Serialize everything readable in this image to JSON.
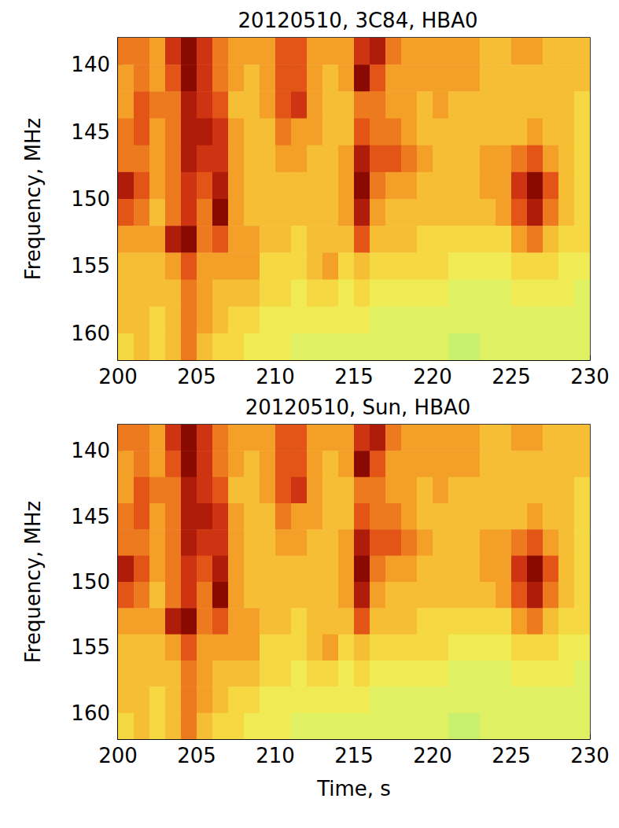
{
  "chart_data": [
    {
      "type": "heatmap",
      "title": "20120510, 3C84, HBA0",
      "ylabel": "Frequency, MHz",
      "xlim": [
        200,
        230
      ],
      "xticks": [
        200,
        205,
        210,
        215,
        220,
        225,
        230
      ],
      "ylim": [
        162,
        138
      ],
      "yticks": [
        140,
        145,
        150,
        155,
        160
      ],
      "grid": false,
      "time_bins": [
        200,
        201,
        202,
        203,
        204,
        205,
        206,
        207,
        208,
        209,
        210,
        211,
        212,
        213,
        214,
        215,
        216,
        217,
        218,
        219,
        220,
        221,
        222,
        223,
        224,
        225,
        226,
        227,
        228,
        229,
        230
      ],
      "frequency_bins": [
        138,
        140,
        142,
        144,
        146,
        148,
        150,
        152,
        154,
        156,
        158,
        160,
        162
      ],
      "zlim": [
        0,
        10
      ],
      "intensity": [
        [
          6,
          6,
          5,
          8,
          10,
          8,
          6,
          5,
          5,
          5,
          7,
          7,
          5,
          5,
          5,
          8,
          9,
          6,
          5,
          5,
          5,
          5,
          5,
          4,
          4,
          5,
          5,
          4,
          4,
          4
        ],
        [
          5,
          6,
          5,
          7,
          10,
          8,
          6,
          5,
          4,
          5,
          7,
          7,
          5,
          4,
          5,
          10,
          7,
          5,
          5,
          5,
          5,
          5,
          5,
          4,
          4,
          4,
          4,
          4,
          4,
          4
        ],
        [
          5,
          7,
          6,
          6,
          9,
          8,
          7,
          4,
          4,
          5,
          7,
          8,
          5,
          4,
          4,
          6,
          6,
          5,
          5,
          4,
          5,
          4,
          4,
          4,
          4,
          4,
          4,
          4,
          4,
          3
        ],
        [
          6,
          7,
          5,
          6,
          9,
          9,
          8,
          5,
          4,
          4,
          6,
          5,
          5,
          4,
          4,
          7,
          6,
          6,
          5,
          4,
          4,
          4,
          4,
          4,
          4,
          4,
          5,
          4,
          4,
          3
        ],
        [
          6,
          6,
          5,
          6,
          9,
          8,
          8,
          5,
          4,
          4,
          5,
          5,
          4,
          4,
          5,
          9,
          7,
          7,
          6,
          5,
          4,
          4,
          4,
          5,
          5,
          6,
          7,
          5,
          4,
          3
        ],
        [
          9,
          7,
          5,
          6,
          8,
          7,
          9,
          5,
          4,
          4,
          4,
          4,
          4,
          4,
          5,
          10,
          6,
          5,
          5,
          4,
          4,
          4,
          4,
          5,
          5,
          8,
          10,
          7,
          4,
          3
        ],
        [
          7,
          6,
          4,
          6,
          8,
          6,
          10,
          5,
          4,
          4,
          4,
          4,
          4,
          4,
          5,
          9,
          5,
          4,
          4,
          4,
          4,
          4,
          4,
          4,
          5,
          7,
          9,
          6,
          4,
          3
        ],
        [
          5,
          5,
          5,
          9,
          10,
          6,
          7,
          5,
          5,
          4,
          4,
          3,
          4,
          4,
          4,
          7,
          4,
          4,
          4,
          3,
          3,
          3,
          3,
          3,
          3,
          5,
          6,
          4,
          3,
          3
        ],
        [
          4,
          4,
          4,
          5,
          7,
          5,
          5,
          5,
          5,
          3,
          3,
          3,
          4,
          5,
          3,
          4,
          3,
          3,
          3,
          3,
          3,
          2,
          2,
          2,
          2,
          3,
          3,
          3,
          2,
          2
        ],
        [
          4,
          4,
          4,
          4,
          6,
          5,
          4,
          4,
          4,
          3,
          3,
          2,
          3,
          3,
          2,
          3,
          2,
          2,
          2,
          2,
          2,
          1,
          1,
          1,
          1,
          2,
          2,
          2,
          2,
          1
        ],
        [
          4,
          4,
          3,
          4,
          6,
          5,
          4,
          3,
          3,
          2,
          2,
          2,
          2,
          2,
          2,
          2,
          1,
          1,
          1,
          1,
          1,
          1,
          1,
          1,
          1,
          1,
          1,
          1,
          1,
          1
        ],
        [
          3,
          4,
          3,
          4,
          6,
          4,
          3,
          3,
          2,
          2,
          2,
          1,
          1,
          1,
          1,
          1,
          1,
          1,
          1,
          1,
          1,
          0,
          0,
          1,
          1,
          1,
          1,
          1,
          1,
          1
        ]
      ]
    },
    {
      "type": "heatmap",
      "title": "20120510, Sun, HBA0",
      "xlabel": "Time, s",
      "ylabel": "Frequency, MHz",
      "xlim": [
        200,
        230
      ],
      "xticks": [
        200,
        205,
        210,
        215,
        220,
        225,
        230
      ],
      "ylim": [
        162,
        138
      ],
      "yticks": [
        140,
        145,
        150,
        155,
        160
      ],
      "grid": false,
      "time_bins": [
        200,
        201,
        202,
        203,
        204,
        205,
        206,
        207,
        208,
        209,
        210,
        211,
        212,
        213,
        214,
        215,
        216,
        217,
        218,
        219,
        220,
        221,
        222,
        223,
        224,
        225,
        226,
        227,
        228,
        229,
        230
      ],
      "frequency_bins": [
        138,
        140,
        142,
        144,
        146,
        148,
        150,
        152,
        154,
        156,
        158,
        160,
        162
      ],
      "zlim": [
        0,
        10
      ],
      "intensity": [
        [
          6,
          6,
          5,
          8,
          10,
          8,
          6,
          5,
          5,
          5,
          7,
          7,
          5,
          5,
          5,
          8,
          9,
          6,
          5,
          5,
          5,
          5,
          5,
          4,
          4,
          5,
          5,
          4,
          4,
          4
        ],
        [
          5,
          6,
          5,
          7,
          10,
          8,
          6,
          5,
          4,
          5,
          7,
          7,
          5,
          4,
          5,
          10,
          7,
          5,
          5,
          5,
          5,
          5,
          5,
          4,
          4,
          4,
          4,
          4,
          4,
          4
        ],
        [
          5,
          7,
          6,
          6,
          9,
          8,
          7,
          4,
          4,
          5,
          7,
          8,
          5,
          4,
          4,
          6,
          6,
          5,
          5,
          4,
          5,
          4,
          4,
          4,
          4,
          4,
          4,
          4,
          4,
          3
        ],
        [
          6,
          7,
          5,
          6,
          9,
          9,
          8,
          5,
          4,
          4,
          6,
          5,
          5,
          4,
          4,
          7,
          6,
          6,
          5,
          4,
          4,
          4,
          4,
          4,
          4,
          4,
          5,
          4,
          4,
          3
        ],
        [
          6,
          6,
          5,
          6,
          9,
          8,
          8,
          5,
          4,
          4,
          5,
          5,
          4,
          4,
          5,
          9,
          7,
          7,
          6,
          5,
          4,
          4,
          4,
          5,
          5,
          6,
          7,
          5,
          4,
          3
        ],
        [
          9,
          7,
          5,
          6,
          8,
          7,
          9,
          5,
          4,
          4,
          4,
          4,
          4,
          4,
          5,
          10,
          6,
          5,
          5,
          4,
          4,
          4,
          4,
          5,
          5,
          8,
          10,
          7,
          4,
          3
        ],
        [
          7,
          6,
          4,
          6,
          8,
          6,
          10,
          5,
          4,
          4,
          4,
          4,
          4,
          4,
          5,
          9,
          5,
          4,
          4,
          4,
          4,
          4,
          4,
          4,
          5,
          7,
          9,
          6,
          4,
          3
        ],
        [
          5,
          5,
          5,
          9,
          10,
          6,
          7,
          5,
          5,
          4,
          4,
          3,
          4,
          4,
          4,
          7,
          4,
          4,
          4,
          3,
          3,
          3,
          3,
          3,
          3,
          5,
          6,
          4,
          3,
          3
        ],
        [
          4,
          4,
          4,
          5,
          7,
          5,
          5,
          5,
          5,
          3,
          3,
          3,
          4,
          5,
          3,
          4,
          3,
          3,
          3,
          3,
          3,
          2,
          2,
          2,
          2,
          3,
          3,
          3,
          2,
          2
        ],
        [
          4,
          4,
          4,
          4,
          6,
          5,
          4,
          4,
          4,
          3,
          3,
          2,
          3,
          3,
          2,
          3,
          2,
          2,
          2,
          2,
          2,
          1,
          1,
          1,
          1,
          2,
          2,
          2,
          2,
          1
        ],
        [
          4,
          4,
          3,
          4,
          6,
          5,
          4,
          3,
          3,
          2,
          2,
          2,
          2,
          2,
          2,
          2,
          1,
          1,
          1,
          1,
          1,
          1,
          1,
          1,
          1,
          1,
          1,
          1,
          1,
          1
        ],
        [
          3,
          4,
          3,
          4,
          6,
          4,
          3,
          3,
          2,
          2,
          2,
          1,
          1,
          1,
          1,
          1,
          1,
          1,
          1,
          1,
          1,
          0,
          0,
          1,
          1,
          1,
          1,
          1,
          1,
          1
        ]
      ]
    }
  ]
}
